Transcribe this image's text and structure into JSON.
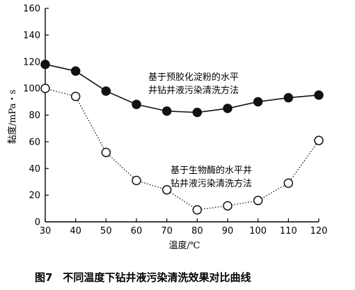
{
  "caption": "图7　不同温度下钻井液污染清洗效果对比曲线",
  "chart_data": {
    "type": "line",
    "title": "",
    "xlabel": "温度/℃",
    "ylabel": "黏度/mPa・s",
    "x": [
      30,
      40,
      50,
      60,
      70,
      80,
      90,
      100,
      110,
      120
    ],
    "xlim": [
      30,
      120
    ],
    "ylim": [
      0,
      160
    ],
    "xticks": [
      "30",
      "40",
      "50",
      "60",
      "70",
      "80",
      "90",
      "100",
      "110",
      "120"
    ],
    "yticks": [
      "0",
      "20",
      "40",
      "60",
      "80",
      "100",
      "120",
      "140",
      "160"
    ],
    "grid": false,
    "series": [
      {
        "name": "基于预胶化淀粉的水平井钻井液污染清洗方法",
        "label_lines": [
          "基于预胶化淀粉的水平",
          "井钻井液污染清洗方法"
        ],
        "values": [
          118,
          113,
          98,
          88,
          83,
          82,
          85,
          90,
          93,
          95
        ],
        "marker": "filled-circle",
        "line_style": "solid",
        "color": "#111111"
      },
      {
        "name": "基于生物酶的水平井钻井液污染清洗方法",
        "label_lines": [
          "基于生物酶的水平井",
          "钻井液污染清洗方法"
        ],
        "values": [
          100,
          94,
          52,
          31,
          24,
          9,
          12,
          16,
          29,
          61
        ],
        "marker": "open-circle",
        "line_style": "dotted",
        "color": "#111111"
      }
    ]
  }
}
